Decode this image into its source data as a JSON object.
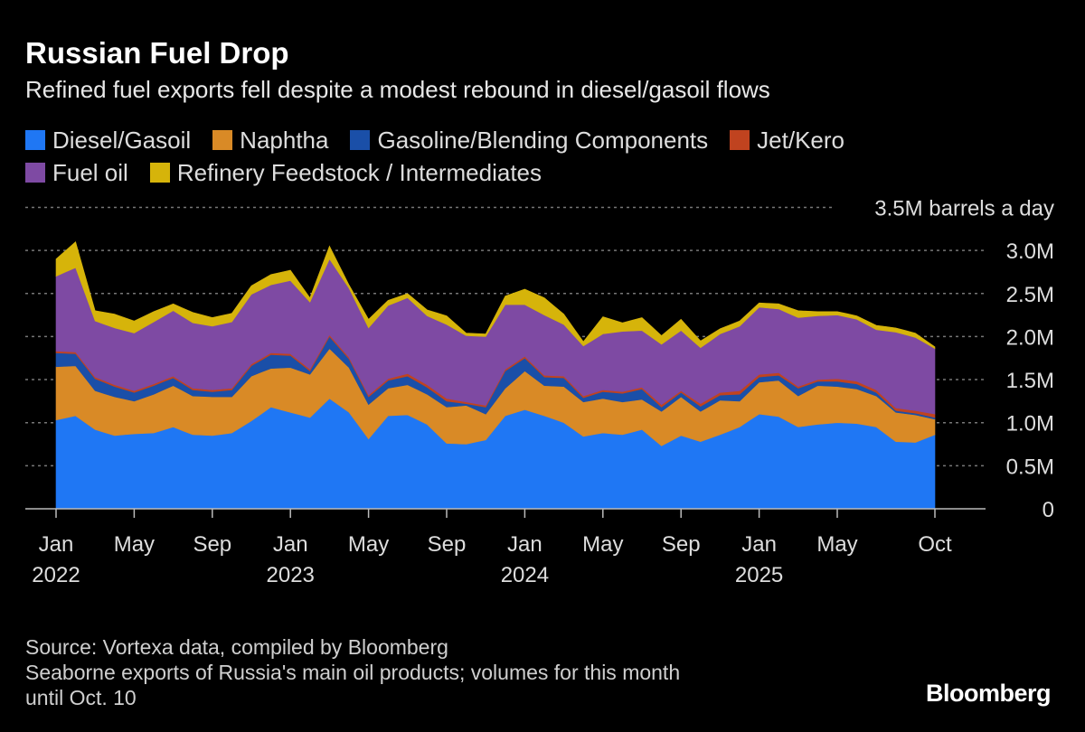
{
  "header": {
    "title": "Russian Fuel Drop",
    "subtitle": "Refined fuel exports fell despite a modest rebound in diesel/gasoil flows"
  },
  "footer": {
    "source": "Source: Vortexa data, compiled by Bloomberg",
    "note_line1": "Seaborne exports of Russia's main oil products; volumes for this month",
    "note_line2": "until Oct. 10",
    "brand": "Bloomberg"
  },
  "chart_data": {
    "type": "area",
    "stacked": true,
    "unit_label": "3.5M barrels a day",
    "ylim": [
      0,
      3.5
    ],
    "y_ticks": [
      {
        "value": 0,
        "label": "0"
      },
      {
        "value": 0.5,
        "label": "0.5M"
      },
      {
        "value": 1.0,
        "label": "1.0M"
      },
      {
        "value": 1.5,
        "label": "1.5M"
      },
      {
        "value": 2.0,
        "label": "2.0M"
      },
      {
        "value": 2.5,
        "label": "2.5M"
      },
      {
        "value": 3.0,
        "label": "3.0M"
      }
    ],
    "x_ticks": [
      {
        "index": 0,
        "month": "Jan",
        "year": "2022"
      },
      {
        "index": 8,
        "month": "May",
        "year": ""
      },
      {
        "index": 16,
        "month": "Sep",
        "year": ""
      },
      {
        "index": 24,
        "month": "Jan",
        "year": "2023"
      },
      {
        "index": 32,
        "month": "May",
        "year": ""
      },
      {
        "index": 40,
        "month": "Sep",
        "year": ""
      },
      {
        "index": 48,
        "month": "Jan",
        "year": "2024"
      },
      {
        "index": 56,
        "month": "May",
        "year": ""
      },
      {
        "index": 64,
        "month": "Sep",
        "year": ""
      },
      {
        "index": 72,
        "month": "Jan",
        "year": "2025"
      },
      {
        "index": 80,
        "month": "May",
        "year": ""
      },
      {
        "index": 90,
        "month": "Oct",
        "year": ""
      }
    ],
    "x_count": 91,
    "x_start": "2022-01",
    "x_end": "2025-10",
    "grid": true,
    "legend_position": "top",
    "series": [
      {
        "name": "Diesel/Gasoil",
        "color": "#1f77f4",
        "keys": [
          [
            0,
            1.03
          ],
          [
            2,
            1.08
          ],
          [
            4,
            0.92
          ],
          [
            6,
            0.85
          ],
          [
            8,
            0.87
          ],
          [
            10,
            0.88
          ],
          [
            12,
            0.95
          ],
          [
            14,
            0.86
          ],
          [
            16,
            0.85
          ],
          [
            18,
            0.88
          ],
          [
            20,
            1.02
          ],
          [
            22,
            1.18
          ],
          [
            24,
            1.12
          ],
          [
            26,
            1.06
          ],
          [
            28,
            1.28
          ],
          [
            30,
            1.12
          ],
          [
            32,
            0.81
          ],
          [
            34,
            1.08
          ],
          [
            36,
            1.09
          ],
          [
            38,
            0.98
          ],
          [
            40,
            0.76
          ],
          [
            42,
            0.75
          ],
          [
            44,
            0.8
          ],
          [
            46,
            1.08
          ],
          [
            48,
            1.15
          ],
          [
            50,
            1.08
          ],
          [
            52,
            1.0
          ],
          [
            54,
            0.84
          ],
          [
            56,
            0.88
          ],
          [
            58,
            0.86
          ],
          [
            60,
            0.92
          ],
          [
            62,
            0.73
          ],
          [
            64,
            0.85
          ],
          [
            66,
            0.78
          ],
          [
            68,
            0.86
          ],
          [
            70,
            0.95
          ],
          [
            72,
            1.1
          ],
          [
            74,
            1.07
          ],
          [
            76,
            0.95
          ],
          [
            78,
            0.98
          ],
          [
            80,
            1.0
          ],
          [
            82,
            0.99
          ],
          [
            84,
            0.95
          ],
          [
            86,
            0.78
          ],
          [
            88,
            0.77
          ],
          [
            90,
            0.86
          ]
        ]
      },
      {
        "name": "Naphtha",
        "color": "#d98a26",
        "keys": [
          [
            0,
            0.62
          ],
          [
            2,
            0.58
          ],
          [
            4,
            0.45
          ],
          [
            6,
            0.45
          ],
          [
            8,
            0.38
          ],
          [
            10,
            0.45
          ],
          [
            12,
            0.48
          ],
          [
            14,
            0.45
          ],
          [
            16,
            0.45
          ],
          [
            18,
            0.42
          ],
          [
            20,
            0.52
          ],
          [
            22,
            0.45
          ],
          [
            24,
            0.52
          ],
          [
            26,
            0.5
          ],
          [
            28,
            0.58
          ],
          [
            30,
            0.52
          ],
          [
            32,
            0.4
          ],
          [
            34,
            0.32
          ],
          [
            36,
            0.35
          ],
          [
            38,
            0.35
          ],
          [
            40,
            0.42
          ],
          [
            42,
            0.45
          ],
          [
            44,
            0.3
          ],
          [
            46,
            0.32
          ],
          [
            48,
            0.45
          ],
          [
            50,
            0.35
          ],
          [
            52,
            0.42
          ],
          [
            54,
            0.4
          ],
          [
            56,
            0.4
          ],
          [
            58,
            0.38
          ],
          [
            60,
            0.35
          ],
          [
            62,
            0.4
          ],
          [
            64,
            0.45
          ],
          [
            66,
            0.35
          ],
          [
            68,
            0.4
          ],
          [
            70,
            0.3
          ],
          [
            72,
            0.37
          ],
          [
            74,
            0.42
          ],
          [
            76,
            0.36
          ],
          [
            78,
            0.45
          ],
          [
            80,
            0.42
          ],
          [
            82,
            0.4
          ],
          [
            84,
            0.36
          ],
          [
            86,
            0.34
          ],
          [
            88,
            0.32
          ],
          [
            90,
            0.18
          ]
        ]
      },
      {
        "name": "Gasoline/Blending Components",
        "color": "#1a4fa8",
        "keys": [
          [
            0,
            0.16
          ],
          [
            2,
            0.14
          ],
          [
            4,
            0.14
          ],
          [
            6,
            0.12
          ],
          [
            8,
            0.1
          ],
          [
            10,
            0.1
          ],
          [
            12,
            0.09
          ],
          [
            14,
            0.07
          ],
          [
            16,
            0.06
          ],
          [
            18,
            0.08
          ],
          [
            20,
            0.12
          ],
          [
            22,
            0.16
          ],
          [
            24,
            0.14
          ],
          [
            26,
            0.04
          ],
          [
            28,
            0.14
          ],
          [
            30,
            0.1
          ],
          [
            32,
            0.09
          ],
          [
            34,
            0.09
          ],
          [
            36,
            0.1
          ],
          [
            38,
            0.08
          ],
          [
            40,
            0.07
          ],
          [
            42,
            0.02
          ],
          [
            44,
            0.08
          ],
          [
            46,
            0.2
          ],
          [
            48,
            0.15
          ],
          [
            50,
            0.1
          ],
          [
            52,
            0.1
          ],
          [
            54,
            0.05
          ],
          [
            56,
            0.08
          ],
          [
            58,
            0.1
          ],
          [
            60,
            0.12
          ],
          [
            62,
            0.05
          ],
          [
            64,
            0.05
          ],
          [
            66,
            0.06
          ],
          [
            68,
            0.06
          ],
          [
            70,
            0.08
          ],
          [
            72,
            0.06
          ],
          [
            74,
            0.06
          ],
          [
            76,
            0.09
          ],
          [
            78,
            0.05
          ],
          [
            80,
            0.06
          ],
          [
            82,
            0.06
          ],
          [
            84,
            0.04
          ],
          [
            86,
            0.02
          ],
          [
            88,
            0.02
          ],
          [
            90,
            0.02
          ]
        ]
      },
      {
        "name": "Jet/Kero",
        "color": "#c0431f",
        "keys": [
          [
            0,
            0.02
          ],
          [
            2,
            0.02
          ],
          [
            4,
            0.02
          ],
          [
            6,
            0.02
          ],
          [
            8,
            0.02
          ],
          [
            10,
            0.02
          ],
          [
            12,
            0.02
          ],
          [
            14,
            0.02
          ],
          [
            16,
            0.02
          ],
          [
            18,
            0.02
          ],
          [
            20,
            0.02
          ],
          [
            22,
            0.02
          ],
          [
            24,
            0.02
          ],
          [
            26,
            0.02
          ],
          [
            28,
            0.02
          ],
          [
            30,
            0.02
          ],
          [
            32,
            0.02
          ],
          [
            34,
            0.02
          ],
          [
            36,
            0.03
          ],
          [
            38,
            0.03
          ],
          [
            40,
            0.03
          ],
          [
            42,
            0.02
          ],
          [
            44,
            0.02
          ],
          [
            46,
            0.02
          ],
          [
            48,
            0.02
          ],
          [
            50,
            0.02
          ],
          [
            52,
            0.02
          ],
          [
            54,
            0.02
          ],
          [
            56,
            0.02
          ],
          [
            58,
            0.02
          ],
          [
            60,
            0.02
          ],
          [
            62,
            0.03
          ],
          [
            64,
            0.02
          ],
          [
            66,
            0.03
          ],
          [
            68,
            0.03
          ],
          [
            70,
            0.04
          ],
          [
            72,
            0.03
          ],
          [
            74,
            0.03
          ],
          [
            76,
            0.02
          ],
          [
            78,
            0.02
          ],
          [
            80,
            0.03
          ],
          [
            82,
            0.03
          ],
          [
            84,
            0.03
          ],
          [
            86,
            0.03
          ],
          [
            88,
            0.03
          ],
          [
            90,
            0.04
          ]
        ]
      },
      {
        "name": "Fuel oil",
        "color": "#7e4aa3",
        "keys": [
          [
            0,
            0.87
          ],
          [
            2,
            0.98
          ],
          [
            4,
            0.65
          ],
          [
            6,
            0.66
          ],
          [
            8,
            0.67
          ],
          [
            10,
            0.72
          ],
          [
            12,
            0.76
          ],
          [
            14,
            0.76
          ],
          [
            16,
            0.74
          ],
          [
            18,
            0.77
          ],
          [
            20,
            0.81
          ],
          [
            22,
            0.79
          ],
          [
            24,
            0.85
          ],
          [
            26,
            0.78
          ],
          [
            28,
            0.88
          ],
          [
            30,
            0.8
          ],
          [
            32,
            0.78
          ],
          [
            34,
            0.85
          ],
          [
            36,
            0.88
          ],
          [
            38,
            0.8
          ],
          [
            40,
            0.86
          ],
          [
            42,
            0.77
          ],
          [
            44,
            0.8
          ],
          [
            46,
            0.75
          ],
          [
            48,
            0.6
          ],
          [
            50,
            0.7
          ],
          [
            52,
            0.6
          ],
          [
            54,
            0.58
          ],
          [
            56,
            0.65
          ],
          [
            58,
            0.7
          ],
          [
            60,
            0.66
          ],
          [
            62,
            0.7
          ],
          [
            64,
            0.7
          ],
          [
            66,
            0.65
          ],
          [
            68,
            0.68
          ],
          [
            70,
            0.75
          ],
          [
            72,
            0.78
          ],
          [
            74,
            0.74
          ],
          [
            76,
            0.8
          ],
          [
            78,
            0.74
          ],
          [
            80,
            0.74
          ],
          [
            82,
            0.72
          ],
          [
            84,
            0.7
          ],
          [
            86,
            0.88
          ],
          [
            88,
            0.85
          ],
          [
            90,
            0.76
          ]
        ]
      },
      {
        "name": "Refinery Feedstock / Intermediates",
        "color": "#d6b40a",
        "keys": [
          [
            0,
            0.2
          ],
          [
            2,
            0.3
          ],
          [
            4,
            0.12
          ],
          [
            6,
            0.16
          ],
          [
            8,
            0.14
          ],
          [
            10,
            0.12
          ],
          [
            12,
            0.08
          ],
          [
            14,
            0.12
          ],
          [
            16,
            0.1
          ],
          [
            18,
            0.1
          ],
          [
            20,
            0.1
          ],
          [
            22,
            0.12
          ],
          [
            24,
            0.12
          ],
          [
            26,
            0.05
          ],
          [
            28,
            0.15
          ],
          [
            30,
            0.04
          ],
          [
            32,
            0.1
          ],
          [
            34,
            0.06
          ],
          [
            36,
            0.05
          ],
          [
            38,
            0.07
          ],
          [
            40,
            0.1
          ],
          [
            42,
            0.03
          ],
          [
            44,
            0.03
          ],
          [
            46,
            0.1
          ],
          [
            48,
            0.18
          ],
          [
            50,
            0.2
          ],
          [
            52,
            0.12
          ],
          [
            54,
            0.05
          ],
          [
            56,
            0.2
          ],
          [
            58,
            0.1
          ],
          [
            60,
            0.15
          ],
          [
            62,
            0.1
          ],
          [
            64,
            0.13
          ],
          [
            66,
            0.08
          ],
          [
            68,
            0.06
          ],
          [
            70,
            0.06
          ],
          [
            72,
            0.05
          ],
          [
            74,
            0.06
          ],
          [
            76,
            0.08
          ],
          [
            78,
            0.05
          ],
          [
            80,
            0.04
          ],
          [
            82,
            0.04
          ],
          [
            84,
            0.05
          ],
          [
            86,
            0.05
          ],
          [
            88,
            0.05
          ],
          [
            90,
            0.02
          ]
        ]
      }
    ]
  }
}
